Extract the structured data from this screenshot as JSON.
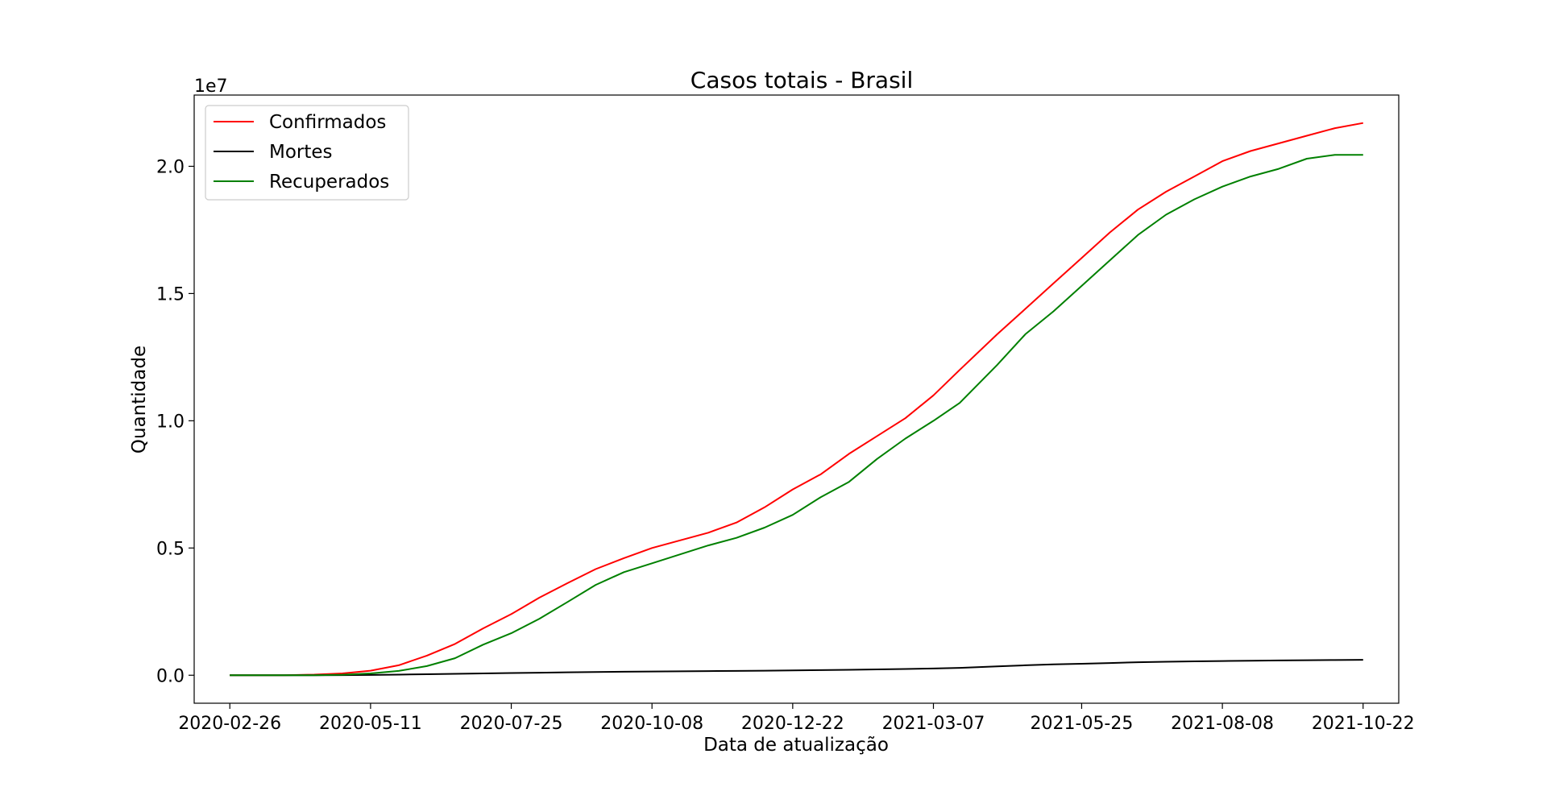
{
  "chart_data": {
    "type": "line",
    "title": "Casos totais - Brasil",
    "xlabel": "Data de atualização",
    "ylabel": "Quantidade",
    "y_offset_label": "1e7",
    "x_tick_labels": [
      "2020-02-26",
      "2020-05-11",
      "2020-07-25",
      "2020-10-08",
      "2020-12-22",
      "2021-03-07",
      "2021-05-25",
      "2021-08-08",
      "2021-10-22"
    ],
    "y_tick_labels": [
      "0.0",
      "0.5",
      "1.0",
      "1.5",
      "2.0"
    ],
    "y_tick_values": [
      0,
      5000000,
      10000000,
      15000000,
      20000000
    ],
    "xlim": [
      "2020-02-07",
      "2021-11-10"
    ],
    "ylim": [
      -1100000,
      22800000
    ],
    "grid": false,
    "legend_position": "upper-left",
    "x": [
      "2020-02-26",
      "2020-03-26",
      "2020-04-11",
      "2020-04-26",
      "2020-05-11",
      "2020-05-26",
      "2020-06-10",
      "2020-06-25",
      "2020-07-10",
      "2020-07-25",
      "2020-08-09",
      "2020-08-24",
      "2020-09-08",
      "2020-09-23",
      "2020-10-08",
      "2020-10-23",
      "2020-11-07",
      "2020-11-22",
      "2020-12-07",
      "2020-12-22",
      "2021-01-06",
      "2021-01-21",
      "2021-02-05",
      "2021-02-20",
      "2021-03-07",
      "2021-03-21",
      "2021-04-10",
      "2021-04-25",
      "2021-05-10",
      "2021-05-25",
      "2021-06-09",
      "2021-06-24",
      "2021-07-09",
      "2021-07-24",
      "2021-08-08",
      "2021-08-23",
      "2021-09-07",
      "2021-09-22",
      "2021-10-07",
      "2021-10-22"
    ],
    "series": [
      {
        "name": "Confirmados",
        "color": "#ff0000",
        "values": [
          0,
          3000,
          25000,
          70000,
          180000,
          390000,
          770000,
          1230000,
          1840000,
          2400000,
          3050000,
          3620000,
          4170000,
          4600000,
          5000000,
          5300000,
          5600000,
          6000000,
          6600000,
          7300000,
          7900000,
          8700000,
          9400000,
          10100000,
          11000000,
          12000000,
          13400000,
          14400000,
          15400000,
          16400000,
          17400000,
          18300000,
          19000000,
          19600000,
          20200000,
          20600000,
          20900000,
          21200000,
          21500000,
          21700000
        ]
      },
      {
        "name": "Mortes",
        "color": "#000000",
        "values": [
          0,
          100,
          1500,
          4000,
          12000,
          24000,
          40000,
          55000,
          72000,
          86000,
          101000,
          116000,
          127000,
          138000,
          148000,
          155000,
          162000,
          170000,
          180000,
          190000,
          200000,
          215000,
          230000,
          245000,
          265000,
          290000,
          350000,
          390000,
          425000,
          450000,
          480000,
          510000,
          530000,
          545000,
          560000,
          572000,
          580000,
          590000,
          598000,
          605000
        ]
      },
      {
        "name": "Recuperados",
        "color": "#008000",
        "values": [
          0,
          0,
          0,
          20000,
          70000,
          170000,
          360000,
          670000,
          1200000,
          1650000,
          2220000,
          2880000,
          3550000,
          4050000,
          4400000,
          4750000,
          5100000,
          5400000,
          5800000,
          6300000,
          7000000,
          7600000,
          8500000,
          9300000,
          10000000,
          10700000,
          12200000,
          13400000,
          14300000,
          15300000,
          16300000,
          17300000,
          18100000,
          18700000,
          19200000,
          19600000,
          19900000,
          20300000,
          20450000,
          20450000
        ]
      }
    ]
  }
}
